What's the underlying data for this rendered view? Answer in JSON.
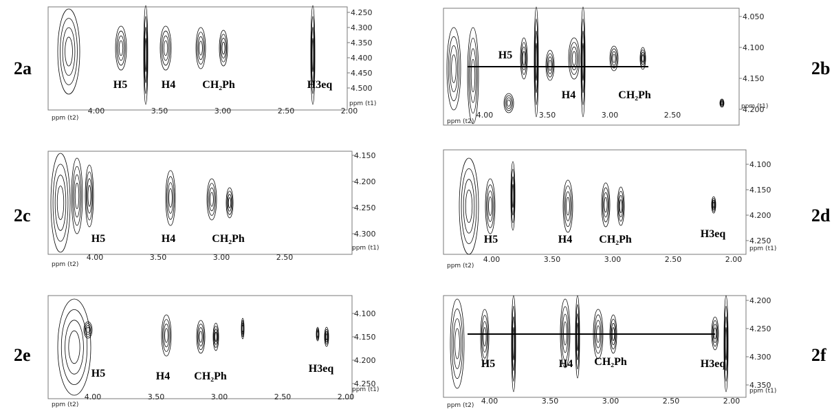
{
  "panels": [
    {
      "label": "2a",
      "x_axis_label": "ppm (t2)",
      "y_axis_label": "ppm (t1)",
      "xticks": [
        "4.00",
        "3.50",
        "3.00",
        "2.50",
        "2.00"
      ],
      "yticks": [
        "4.250",
        "4.300",
        "4.350",
        "4.400",
        "4.450",
        "4.500"
      ],
      "peaks": [
        "H5",
        "H4",
        "CH₂Ph",
        "H3eq"
      ]
    },
    {
      "label": "2b",
      "x_axis_label": "ppm (t2)",
      "y_axis_label": "ppm (t1)",
      "xticks": [
        "4.00",
        "3.50",
        "3.00",
        "2.50"
      ],
      "yticks": [
        "4.050",
        "4.100",
        "4.150",
        "4.200"
      ],
      "peaks": [
        "H5",
        "H4",
        "CH₂Ph"
      ]
    },
    {
      "label": "2c",
      "x_axis_label": "ppm (t2)",
      "y_axis_label": "ppm (t1)",
      "xticks": [
        "4.00",
        "3.50",
        "3.00",
        "2.50"
      ],
      "yticks": [
        "4.150",
        "4.200",
        "4.250",
        "4.300"
      ],
      "peaks": [
        "H5",
        "H4",
        "CH₂Ph"
      ]
    },
    {
      "label": "2d",
      "x_axis_label": "ppm (t2)",
      "y_axis_label": "ppm (t1)",
      "xticks": [
        "4.00",
        "3.50",
        "3.00",
        "2.50",
        "2.00"
      ],
      "yticks": [
        "4.100",
        "4.150",
        "4.200",
        "4.250"
      ],
      "peaks": [
        "H5",
        "H4",
        "CH₂Ph",
        "H3eq"
      ]
    },
    {
      "label": "2e",
      "x_axis_label": "ppm (t2)",
      "y_axis_label": "ppm (t1)",
      "xticks": [
        "4.00",
        "3.50",
        "3.00",
        "2.50",
        "2.00"
      ],
      "yticks": [
        "4.100",
        "4.150",
        "4.200",
        "4.250"
      ],
      "peaks": [
        "H5",
        "H4",
        "CH₂Ph",
        "H3eq"
      ]
    },
    {
      "label": "2f",
      "x_axis_label": "ppm (t2)",
      "y_axis_label": "ppm (t1)",
      "xticks": [
        "4.00",
        "3.50",
        "3.00",
        "2.50",
        "2.00"
      ],
      "yticks": [
        "4.200",
        "4.250",
        "4.300",
        "4.350"
      ],
      "peaks": [
        "H5",
        "H4",
        "CH₂Ph",
        "H3eq"
      ]
    }
  ]
}
